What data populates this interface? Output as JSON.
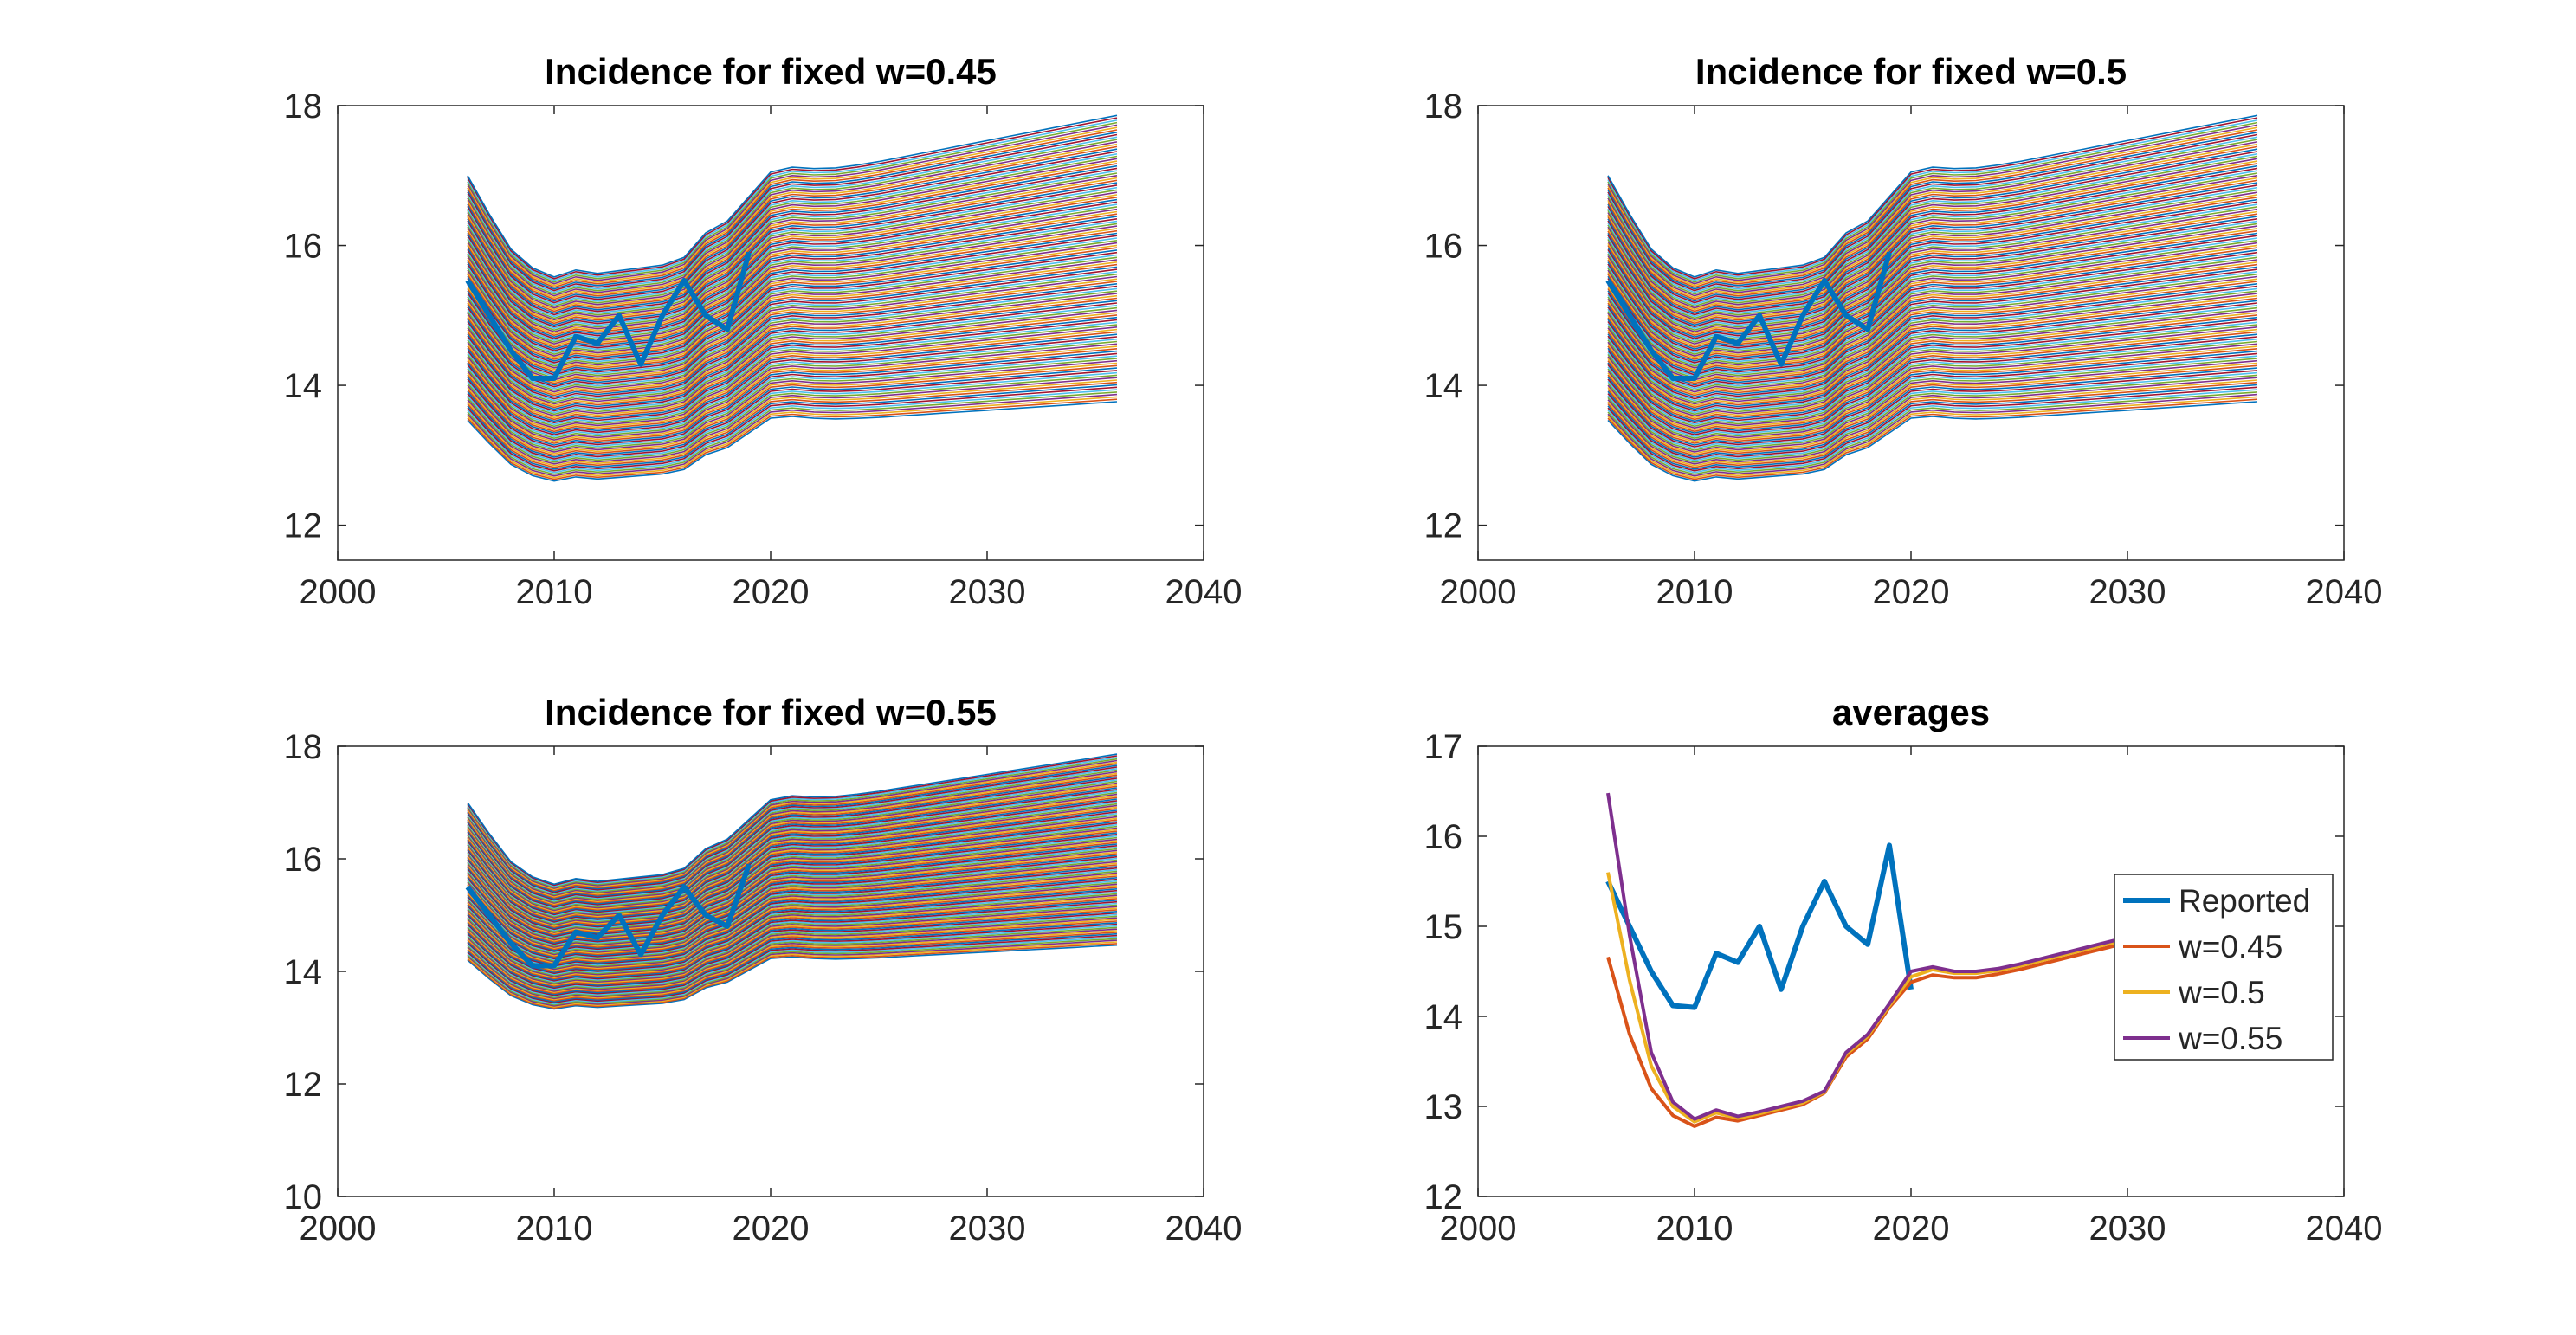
{
  "chart_data": [
    {
      "type": "line",
      "title": "Incidence for fixed w=0.45",
      "xlim": [
        2000,
        2040
      ],
      "ylim": [
        11.5,
        18
      ],
      "xticks": [
        "2000",
        "2010",
        "2020",
        "2030",
        "2040"
      ],
      "yticks": [
        "12",
        "14",
        "16",
        "18"
      ],
      "ensemble": {
        "count": 120,
        "bottom_offset": -2.0,
        "top_offset": 1.5,
        "x_start": 2006,
        "x_end": 2036
      },
      "series": [
        {
          "x": [
            2006,
            2007,
            2008,
            2009,
            2010,
            2011,
            2012,
            2013,
            2014,
            2015,
            2016,
            2017,
            2018,
            2019
          ],
          "values": [
            15.5,
            15.0,
            14.5,
            14.1,
            14.1,
            14.7,
            14.6,
            15.0,
            14.3,
            15.0,
            15.5,
            15.0,
            14.8,
            15.9
          ]
        }
      ]
    },
    {
      "type": "line",
      "title": "Incidence for fixed w=0.5",
      "xlim": [
        2000,
        2040
      ],
      "ylim": [
        11.5,
        18
      ],
      "xticks": [
        "2000",
        "2010",
        "2020",
        "2030",
        "2040"
      ],
      "yticks": [
        "12",
        "14",
        "16",
        "18"
      ],
      "ensemble": {
        "count": 120,
        "bottom_offset": -2.0,
        "top_offset": 1.5,
        "x_start": 2006,
        "x_end": 2036
      },
      "series": [
        {
          "x": [
            2006,
            2007,
            2008,
            2009,
            2010,
            2011,
            2012,
            2013,
            2014,
            2015,
            2016,
            2017,
            2018,
            2019
          ],
          "values": [
            15.5,
            15.0,
            14.5,
            14.1,
            14.1,
            14.7,
            14.6,
            15.0,
            14.3,
            15.0,
            15.5,
            15.0,
            14.8,
            15.9
          ]
        }
      ]
    },
    {
      "type": "line",
      "title": "Incidence for fixed w=0.55",
      "xlim": [
        2000,
        2040
      ],
      "ylim": [
        10,
        18
      ],
      "xticks": [
        "2000",
        "2010",
        "2020",
        "2030",
        "2040"
      ],
      "yticks": [
        "10",
        "12",
        "14",
        "16",
        "18"
      ],
      "ensemble": {
        "count": 120,
        "bottom_offset": -1.3,
        "top_offset": 1.5,
        "x_start": 2006,
        "x_end": 2036
      },
      "series": [
        {
          "x": [
            2006,
            2007,
            2008,
            2009,
            2010,
            2011,
            2012,
            2013,
            2014,
            2015,
            2016,
            2017,
            2018,
            2019
          ],
          "values": [
            15.5,
            15.0,
            14.5,
            14.1,
            14.1,
            14.7,
            14.6,
            15.0,
            14.3,
            15.0,
            15.5,
            15.0,
            14.8,
            15.9
          ]
        }
      ]
    },
    {
      "type": "line",
      "title": "averages",
      "xlim": [
        2000,
        2040
      ],
      "ylim": [
        12,
        17
      ],
      "xticks": [
        "2000",
        "2010",
        "2020",
        "2030",
        "2040"
      ],
      "yticks": [
        "12",
        "13",
        "14",
        "15",
        "16",
        "17"
      ],
      "legend": "right",
      "x": [
        2006,
        2007,
        2008,
        2009,
        2010,
        2011,
        2012,
        2013,
        2014,
        2015,
        2016,
        2017,
        2018,
        2019,
        2020,
        2021,
        2022,
        2023,
        2024,
        2025,
        2026,
        2027,
        2028,
        2029,
        2030,
        2031,
        2032,
        2033,
        2034,
        2035,
        2036
      ],
      "series": [
        {
          "name": "Reported",
          "color": "#0072BD",
          "values": [
            15.5,
            15.0,
            14.5,
            14.12,
            14.1,
            14.7,
            14.6,
            15.0,
            14.3,
            15.0,
            15.5,
            15.0,
            14.8,
            15.9,
            14.3,
            null,
            null,
            null,
            null,
            null,
            null,
            null,
            null,
            null,
            null,
            null,
            null,
            null,
            null,
            null,
            null
          ]
        },
        {
          "name": "w=0.45",
          "color": "#D95319",
          "values": [
            14.66,
            13.8,
            13.2,
            12.9,
            12.78,
            12.88,
            12.84,
            12.9,
            12.96,
            13.02,
            13.15,
            13.55,
            13.75,
            14.1,
            14.38,
            14.46,
            14.43,
            14.43,
            14.47,
            14.52,
            14.58,
            14.64,
            14.7,
            14.76,
            14.82,
            14.88,
            14.94,
            15.0,
            15.06,
            15.12,
            15.18
          ]
        },
        {
          "name": "w=0.5",
          "color": "#EDB120",
          "values": [
            15.6,
            14.4,
            13.45,
            13.0,
            12.83,
            12.93,
            12.87,
            12.92,
            12.98,
            13.04,
            13.16,
            13.58,
            13.78,
            14.12,
            14.44,
            14.52,
            14.48,
            14.48,
            14.51,
            14.56,
            14.62,
            14.68,
            14.74,
            14.8,
            14.86,
            14.92,
            14.98,
            15.04,
            15.1,
            15.16,
            15.22
          ]
        },
        {
          "name": "w=0.55",
          "color": "#7E2F8E",
          "values": [
            16.48,
            14.9,
            13.6,
            13.05,
            12.86,
            12.96,
            12.89,
            12.94,
            13.0,
            13.06,
            13.17,
            13.6,
            13.8,
            14.14,
            14.5,
            14.55,
            14.5,
            14.5,
            14.53,
            14.58,
            14.64,
            14.7,
            14.76,
            14.82,
            14.88,
            14.94,
            15.0,
            15.06,
            15.12,
            15.18,
            15.24
          ]
        }
      ]
    }
  ]
}
